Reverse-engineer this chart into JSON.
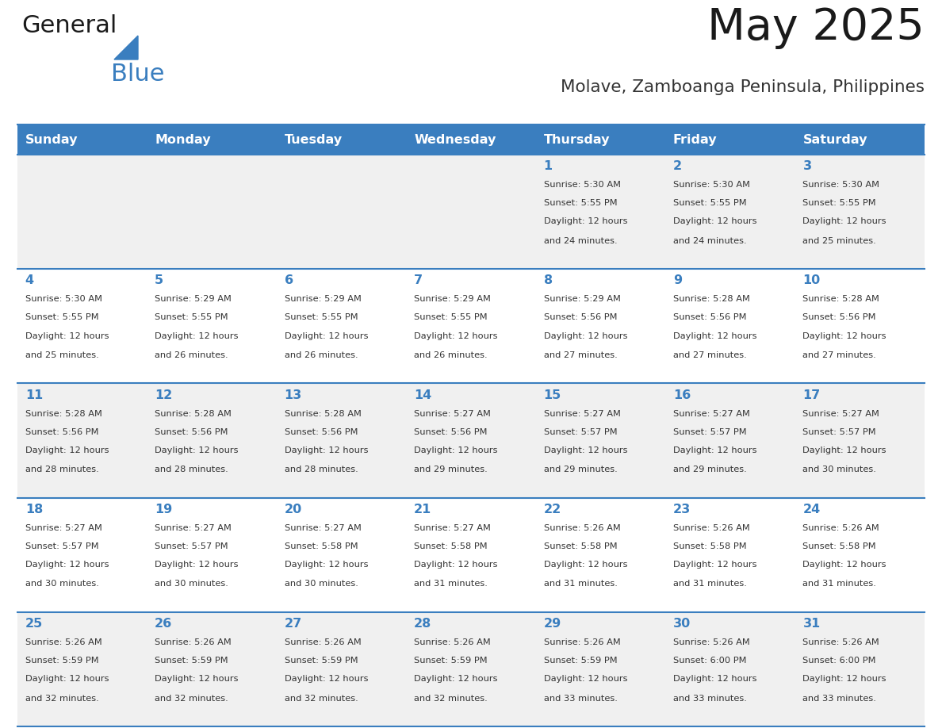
{
  "title": "May 2025",
  "subtitle": "Molave, Zamboanga Peninsula, Philippines",
  "days_of_week": [
    "Sunday",
    "Monday",
    "Tuesday",
    "Wednesday",
    "Thursday",
    "Friday",
    "Saturday"
  ],
  "header_bg": "#3a7ebf",
  "header_text": "#ffffff",
  "row_bg_odd": "#f0f0f0",
  "row_bg_even": "#ffffff",
  "day_number_color": "#3a7ebf",
  "text_color": "#333333",
  "line_color": "#3a7ebf",
  "calendar_data": [
    [
      null,
      null,
      null,
      null,
      {
        "day": 1,
        "sunrise": "5:30 AM",
        "sunset": "5:55 PM",
        "daylight": "12 hours and 24 minutes."
      },
      {
        "day": 2,
        "sunrise": "5:30 AM",
        "sunset": "5:55 PM",
        "daylight": "12 hours and 24 minutes."
      },
      {
        "day": 3,
        "sunrise": "5:30 AM",
        "sunset": "5:55 PM",
        "daylight": "12 hours and 25 minutes."
      }
    ],
    [
      {
        "day": 4,
        "sunrise": "5:30 AM",
        "sunset": "5:55 PM",
        "daylight": "12 hours and 25 minutes."
      },
      {
        "day": 5,
        "sunrise": "5:29 AM",
        "sunset": "5:55 PM",
        "daylight": "12 hours and 26 minutes."
      },
      {
        "day": 6,
        "sunrise": "5:29 AM",
        "sunset": "5:55 PM",
        "daylight": "12 hours and 26 minutes."
      },
      {
        "day": 7,
        "sunrise": "5:29 AM",
        "sunset": "5:55 PM",
        "daylight": "12 hours and 26 minutes."
      },
      {
        "day": 8,
        "sunrise": "5:29 AM",
        "sunset": "5:56 PM",
        "daylight": "12 hours and 27 minutes."
      },
      {
        "day": 9,
        "sunrise": "5:28 AM",
        "sunset": "5:56 PM",
        "daylight": "12 hours and 27 minutes."
      },
      {
        "day": 10,
        "sunrise": "5:28 AM",
        "sunset": "5:56 PM",
        "daylight": "12 hours and 27 minutes."
      }
    ],
    [
      {
        "day": 11,
        "sunrise": "5:28 AM",
        "sunset": "5:56 PM",
        "daylight": "12 hours and 28 minutes."
      },
      {
        "day": 12,
        "sunrise": "5:28 AM",
        "sunset": "5:56 PM",
        "daylight": "12 hours and 28 minutes."
      },
      {
        "day": 13,
        "sunrise": "5:28 AM",
        "sunset": "5:56 PM",
        "daylight": "12 hours and 28 minutes."
      },
      {
        "day": 14,
        "sunrise": "5:27 AM",
        "sunset": "5:56 PM",
        "daylight": "12 hours and 29 minutes."
      },
      {
        "day": 15,
        "sunrise": "5:27 AM",
        "sunset": "5:57 PM",
        "daylight": "12 hours and 29 minutes."
      },
      {
        "day": 16,
        "sunrise": "5:27 AM",
        "sunset": "5:57 PM",
        "daylight": "12 hours and 29 minutes."
      },
      {
        "day": 17,
        "sunrise": "5:27 AM",
        "sunset": "5:57 PM",
        "daylight": "12 hours and 30 minutes."
      }
    ],
    [
      {
        "day": 18,
        "sunrise": "5:27 AM",
        "sunset": "5:57 PM",
        "daylight": "12 hours and 30 minutes."
      },
      {
        "day": 19,
        "sunrise": "5:27 AM",
        "sunset": "5:57 PM",
        "daylight": "12 hours and 30 minutes."
      },
      {
        "day": 20,
        "sunrise": "5:27 AM",
        "sunset": "5:58 PM",
        "daylight": "12 hours and 30 minutes."
      },
      {
        "day": 21,
        "sunrise": "5:27 AM",
        "sunset": "5:58 PM",
        "daylight": "12 hours and 31 minutes."
      },
      {
        "day": 22,
        "sunrise": "5:26 AM",
        "sunset": "5:58 PM",
        "daylight": "12 hours and 31 minutes."
      },
      {
        "day": 23,
        "sunrise": "5:26 AM",
        "sunset": "5:58 PM",
        "daylight": "12 hours and 31 minutes."
      },
      {
        "day": 24,
        "sunrise": "5:26 AM",
        "sunset": "5:58 PM",
        "daylight": "12 hours and 31 minutes."
      }
    ],
    [
      {
        "day": 25,
        "sunrise": "5:26 AM",
        "sunset": "5:59 PM",
        "daylight": "12 hours and 32 minutes."
      },
      {
        "day": 26,
        "sunrise": "5:26 AM",
        "sunset": "5:59 PM",
        "daylight": "12 hours and 32 minutes."
      },
      {
        "day": 27,
        "sunrise": "5:26 AM",
        "sunset": "5:59 PM",
        "daylight": "12 hours and 32 minutes."
      },
      {
        "day": 28,
        "sunrise": "5:26 AM",
        "sunset": "5:59 PM",
        "daylight": "12 hours and 32 minutes."
      },
      {
        "day": 29,
        "sunrise": "5:26 AM",
        "sunset": "5:59 PM",
        "daylight": "12 hours and 33 minutes."
      },
      {
        "day": 30,
        "sunrise": "5:26 AM",
        "sunset": "6:00 PM",
        "daylight": "12 hours and 33 minutes."
      },
      {
        "day": 31,
        "sunrise": "5:26 AM",
        "sunset": "6:00 PM",
        "daylight": "12 hours and 33 minutes."
      }
    ]
  ]
}
